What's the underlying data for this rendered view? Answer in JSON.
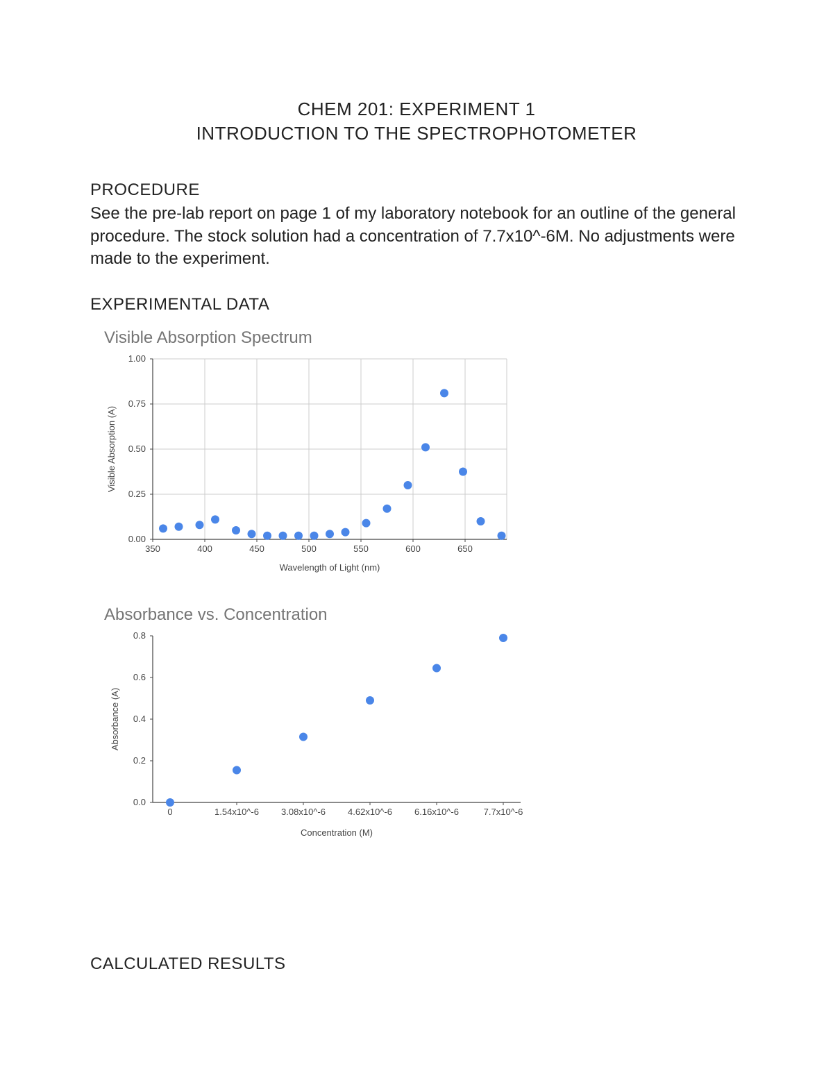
{
  "title": {
    "line1": "CHEM 201: EXPERIMENT 1",
    "line2": "INTRODUCTION TO THE SPECTROPHOTOMETER"
  },
  "procedure": {
    "heading": "PROCEDURE",
    "text": "See the pre-lab report on page 1 of my laboratory notebook for an outline of the general procedure. The stock solution had a concentration of 7.7x10^-6M. No adjustments were made to the experiment."
  },
  "experimental_heading": "EXPERIMENTAL DATA",
  "calc_results_heading": "CALCULATED RESULTS",
  "chart1": {
    "title": "Visible Absorption Spectrum",
    "type": "scatter",
    "xlabel": "Wavelength of Light (nm)",
    "ylabel": "Visible Absorption (A)",
    "xlim": [
      350,
      690
    ],
    "ylim": [
      0,
      1.0
    ],
    "xticks": [
      350,
      400,
      450,
      500,
      550,
      600,
      650
    ],
    "yticks": [
      0.0,
      0.25,
      0.5,
      0.75,
      1.0
    ],
    "ytick_labels": [
      "0.00",
      "0.25",
      "0.50",
      "0.75",
      "1.00"
    ],
    "grid_color": "#cccccc",
    "axis_color": "#444444",
    "background": "#ffffff",
    "tick_fontsize": 13,
    "label_fontsize": 13,
    "title_fontsize": 24,
    "title_color": "#757575",
    "marker_color": "#4a86e8",
    "marker_radius": 6,
    "points": [
      [
        360,
        0.06
      ],
      [
        375,
        0.07
      ],
      [
        395,
        0.08
      ],
      [
        410,
        0.11
      ],
      [
        430,
        0.05
      ],
      [
        445,
        0.03
      ],
      [
        460,
        0.02
      ],
      [
        475,
        0.02
      ],
      [
        490,
        0.02
      ],
      [
        505,
        0.02
      ],
      [
        520,
        0.03
      ],
      [
        535,
        0.04
      ],
      [
        555,
        0.09
      ],
      [
        575,
        0.17
      ],
      [
        595,
        0.3
      ],
      [
        612,
        0.51
      ],
      [
        630,
        0.81
      ],
      [
        648,
        0.375
      ],
      [
        665,
        0.1
      ],
      [
        685,
        0.02
      ]
    ]
  },
  "chart2": {
    "title": "Absorbance vs. Concentration",
    "type": "scatter",
    "xlabel": "Concentration (M)",
    "ylabel": "Absorbance (A)",
    "x_categories": [
      "0",
      "1.54x10^-6",
      "3.08x10^-6",
      "4.62x10^-6",
      "6.16x10^-6",
      "7.7x10^-6"
    ],
    "ylim": [
      0,
      0.8
    ],
    "yticks": [
      0.0,
      0.2,
      0.4,
      0.6,
      0.8
    ],
    "ytick_labels": [
      "0.0",
      "0.2",
      "0.4",
      "0.6",
      "0.8"
    ],
    "axis_color": "#444444",
    "background": "#ffffff",
    "tick_fontsize": 13,
    "label_fontsize": 13,
    "title_fontsize": 24,
    "title_color": "#757575",
    "marker_color": "#4a86e8",
    "marker_radius": 6,
    "values": [
      0.0,
      0.155,
      0.315,
      0.49,
      0.645,
      0.79
    ]
  }
}
